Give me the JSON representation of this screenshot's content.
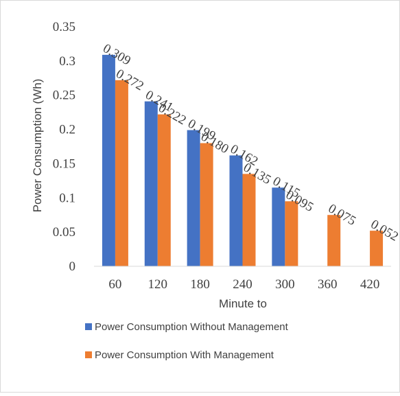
{
  "chart_data": {
    "type": "bar",
    "categories": [
      "60",
      "120",
      "180",
      "240",
      "300",
      "360",
      "420"
    ],
    "series": [
      {
        "name": "Power Consumption Without Management",
        "color": "#4472C4",
        "values": [
          0.309,
          0.241,
          0.199,
          0.162,
          0.115,
          null,
          null
        ],
        "labels": [
          "0.309",
          "0.241",
          "0.199",
          "0.162",
          "0.115",
          "",
          ""
        ]
      },
      {
        "name": "Power Consumption With Management",
        "color": "#ED7D31",
        "values": [
          0.272,
          0.222,
          0.18,
          0.135,
          0.095,
          0.075,
          0.052
        ],
        "labels": [
          "0.272",
          "0.222",
          "0.180",
          "0.135",
          "0.095",
          "0.075",
          "0.052"
        ]
      }
    ],
    "title": "",
    "xlabel": "Minute to",
    "ylabel": "Power Consumption (Wh)",
    "ylim": [
      0,
      0.35
    ],
    "yticks": [
      "0",
      "0.05",
      "0.1",
      "0.15",
      "0.2",
      "0.25",
      "0.3",
      "0.35"
    ],
    "ytick_values": [
      0,
      0.05,
      0.1,
      0.15,
      0.2,
      0.25,
      0.3,
      0.35
    ],
    "grid": false,
    "legend_position": "bottom"
  }
}
